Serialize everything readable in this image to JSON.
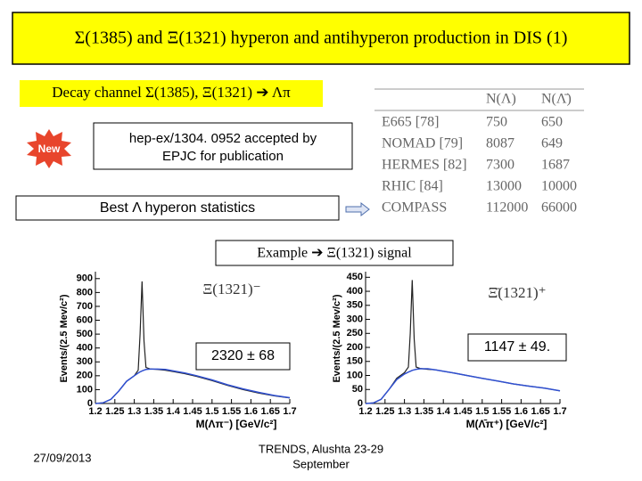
{
  "title": "Σ(1385) and Ξ(1321) hyperon and antihyperon production in DIS (1)",
  "subtitle": "Decay channel Σ(1385), Ξ(1321) ➔ Λπ",
  "badge": "New",
  "note": [
    "hep-ex/1304. 0952 accepted  by",
    "EPJC for publication"
  ],
  "statistics_label": "Best Λ hyperon statistics",
  "table": {
    "header": [
      "N(Λ)",
      "N(Λ̄)"
    ],
    "rows": [
      [
        "E665 [78]",
        750,
        650
      ],
      [
        "NOMAD [79]",
        8087,
        649
      ],
      [
        "HERMES [82]",
        7300,
        1687
      ],
      [
        "RHIC [84]",
        13000,
        10000
      ],
      [
        "COMPASS",
        112000,
        66000
      ]
    ]
  },
  "example_label": "Example ➔ Ξ(1321) signal",
  "plots": [
    {
      "type": "histogram",
      "label": "Ξ(1321)⁻",
      "annotation": "2320  ± 68",
      "xlabel": "M(Λπ⁻) [GeV/c²]",
      "ylabel": "Events/(2.5 Mev/c²)",
      "xlim": [
        1.2,
        1.7
      ],
      "ylim": [
        0,
        950
      ],
      "xticks": [
        1.2,
        1.25,
        1.3,
        1.35,
        1.4,
        1.45,
        1.5,
        1.55,
        1.6,
        1.65,
        1.7
      ],
      "yticks": [
        0,
        100,
        200,
        300,
        400,
        500,
        600,
        700,
        800,
        900
      ],
      "x": [
        1.2,
        1.22,
        1.24,
        1.26,
        1.28,
        1.3,
        1.31,
        1.315,
        1.32,
        1.325,
        1.33,
        1.34,
        1.36,
        1.38,
        1.4,
        1.43,
        1.46,
        1.5,
        1.54,
        1.58,
        1.62,
        1.66,
        1.7
      ],
      "values": [
        0,
        5,
        30,
        90,
        160,
        200,
        240,
        500,
        880,
        450,
        260,
        250,
        245,
        240,
        230,
        215,
        195,
        165,
        130,
        100,
        75,
        55,
        40
      ],
      "fit": [
        0,
        5,
        30,
        90,
        160,
        200,
        220,
        228,
        235,
        240,
        245,
        248,
        248,
        245,
        235,
        220,
        200,
        170,
        135,
        105,
        80,
        58,
        42
      ]
    },
    {
      "type": "histogram",
      "label": "Ξ̄(1321)⁺",
      "annotation": "1147  ± 49.",
      "xlabel": "M(Λ̄π⁺) [GeV/c²]",
      "ylabel": "Events/(2.5 Mev/c²)",
      "xlim": [
        1.2,
        1.7
      ],
      "ylim": [
        0,
        470
      ],
      "xticks": [
        1.2,
        1.25,
        1.3,
        1.35,
        1.4,
        1.45,
        1.5,
        1.55,
        1.6,
        1.65,
        1.7
      ],
      "yticks": [
        0,
        50,
        100,
        150,
        200,
        250,
        300,
        350,
        400,
        450
      ],
      "x": [
        1.2,
        1.22,
        1.24,
        1.26,
        1.28,
        1.3,
        1.31,
        1.315,
        1.32,
        1.325,
        1.33,
        1.34,
        1.36,
        1.38,
        1.4,
        1.43,
        1.46,
        1.5,
        1.54,
        1.58,
        1.62,
        1.66,
        1.7
      ],
      "values": [
        0,
        2,
        15,
        50,
        90,
        110,
        130,
        250,
        440,
        230,
        130,
        125,
        122,
        120,
        115,
        108,
        100,
        90,
        80,
        70,
        62,
        55,
        45
      ],
      "fit": [
        0,
        2,
        15,
        50,
        85,
        105,
        112,
        115,
        118,
        120,
        122,
        124,
        124,
        120,
        115,
        108,
        100,
        90,
        80,
        70,
        62,
        55,
        45
      ]
    }
  ],
  "footer": {
    "date": "27/09/2013",
    "event": [
      "TRENDS, Alushta 23-29",
      "September"
    ]
  }
}
